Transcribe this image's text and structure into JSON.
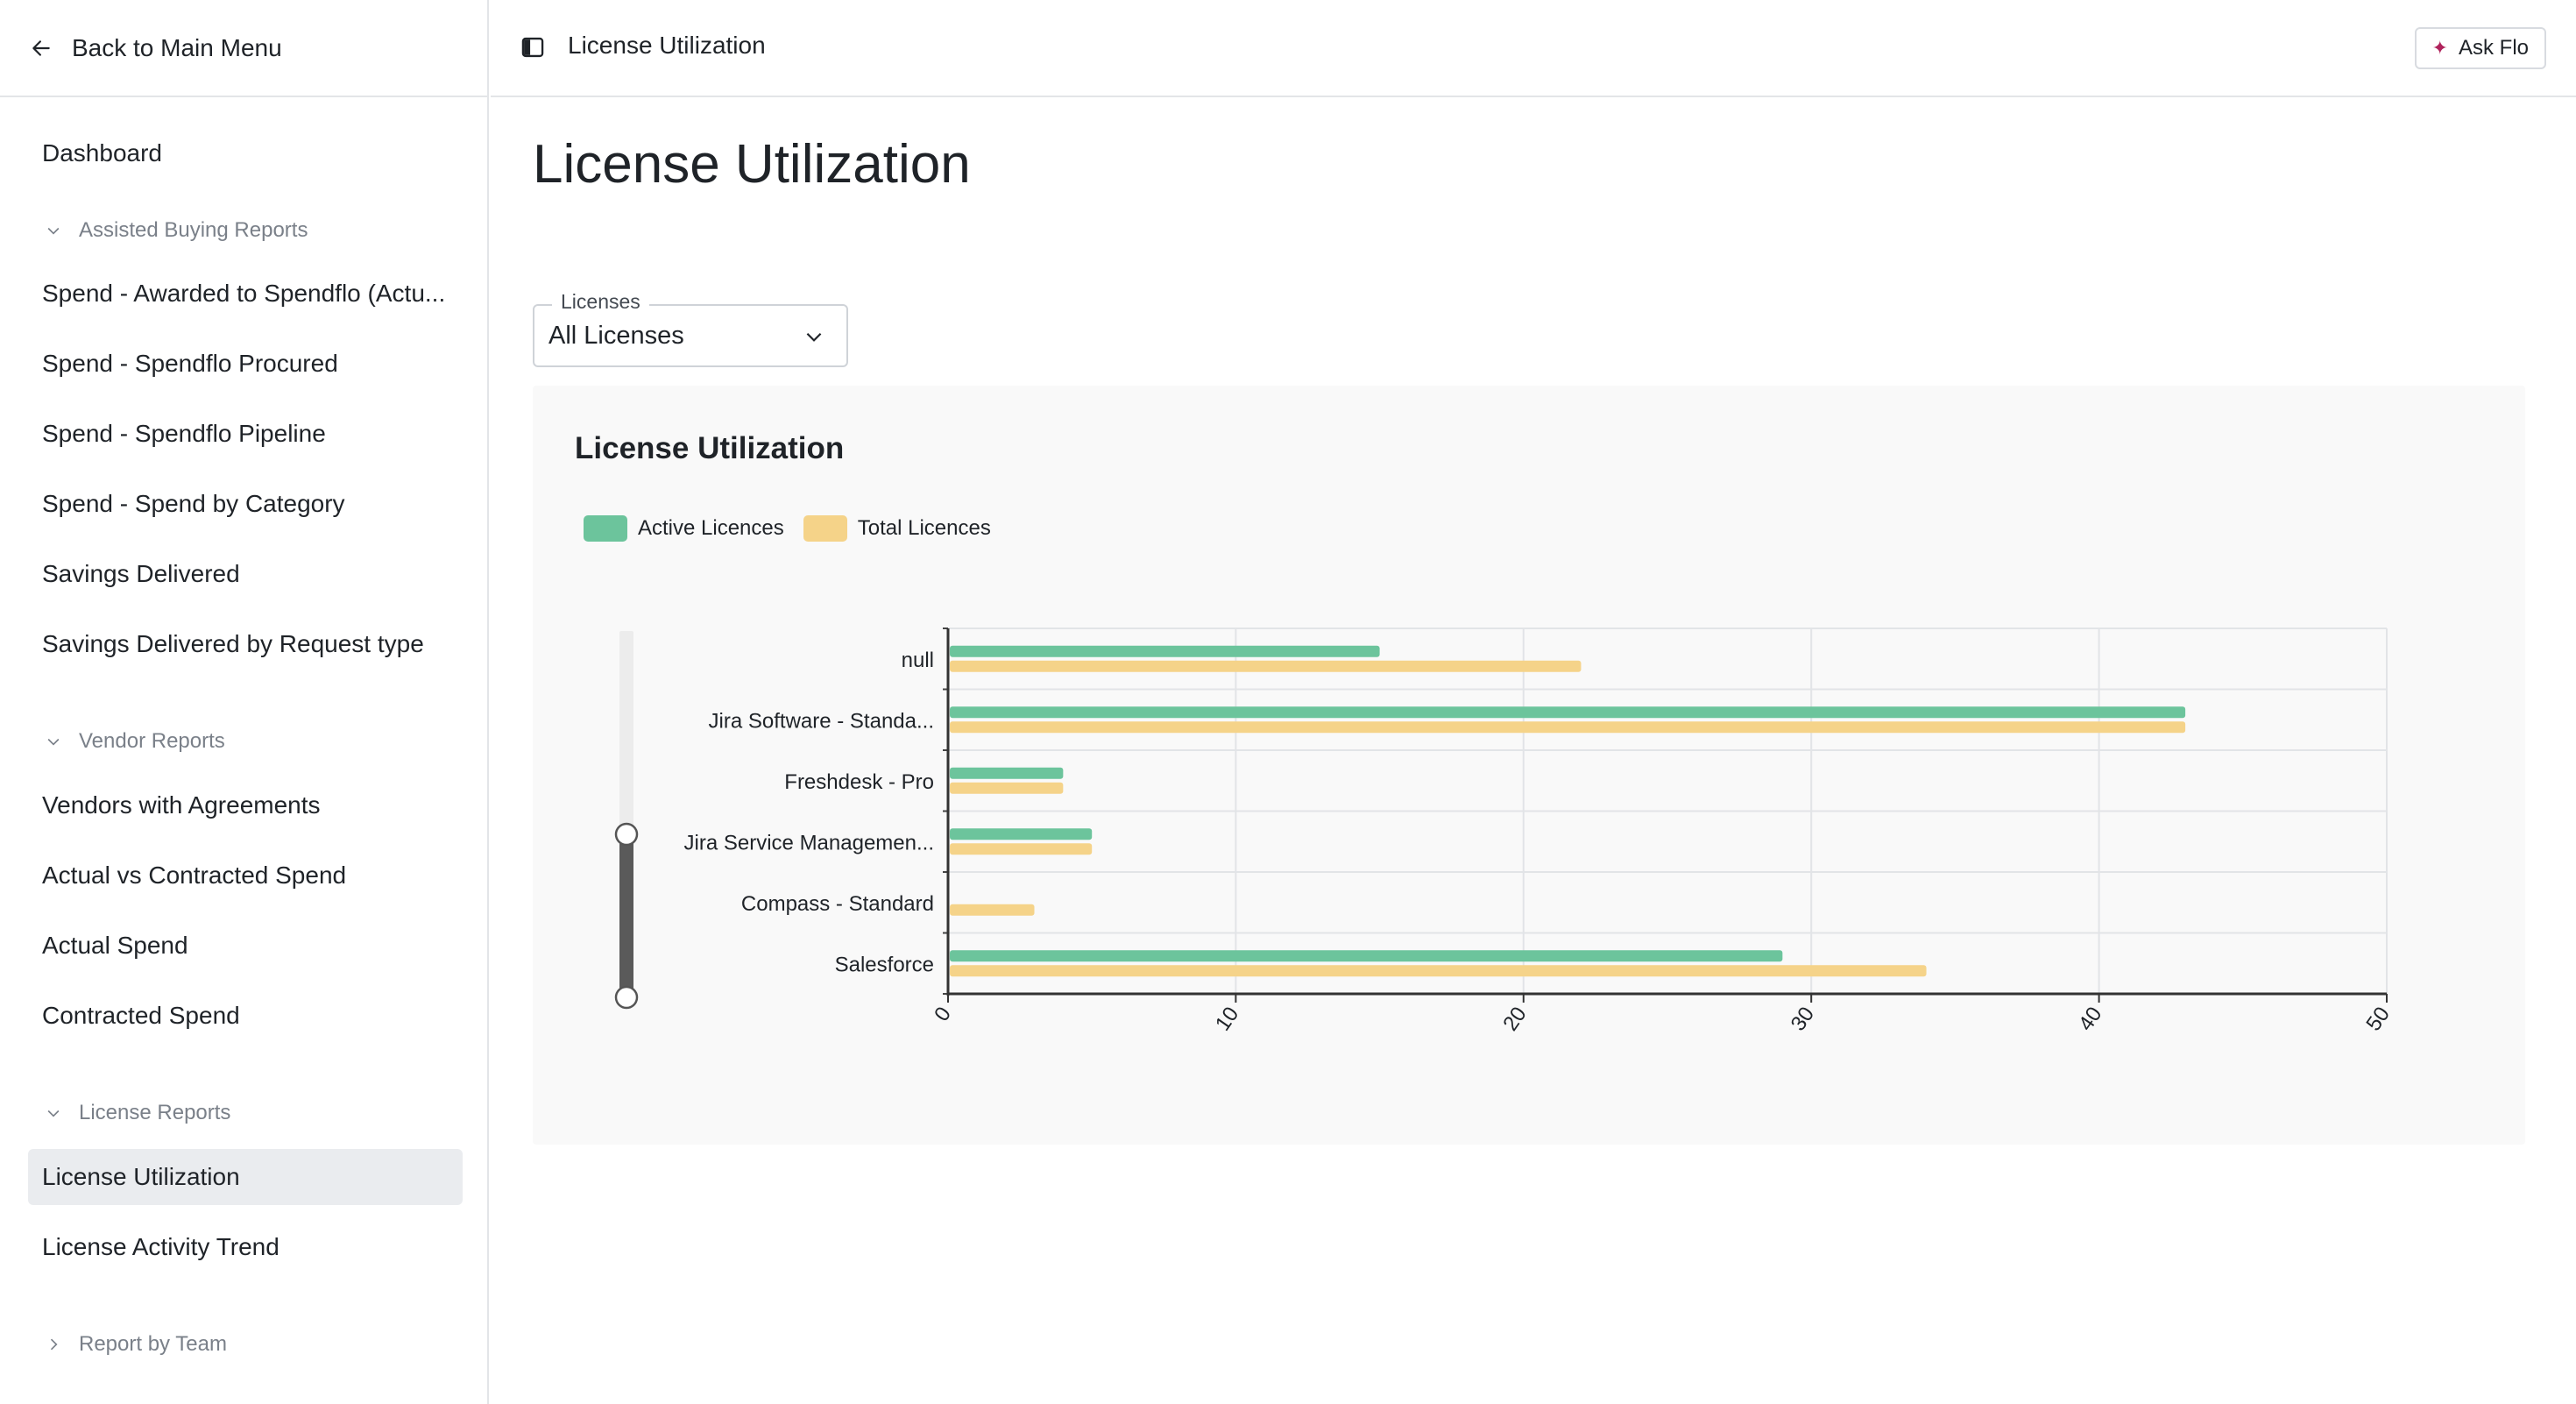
{
  "sidebar": {
    "back_label": "Back to Main Menu",
    "items": {
      "dashboard": "Dashboard",
      "spend_awarded": "Spend - Awarded to Spendflo (Actu...",
      "spend_procured": "Spend - Spendflo Procured",
      "spend_pipeline": "Spend - Spendflo Pipeline",
      "spend_category": "Spend - Spend by Category",
      "savings_delivered": "Savings Delivered",
      "savings_request_type": "Savings Delivered by Request type",
      "vendors_agreements": "Vendors with Agreements",
      "actual_vs_contracted": "Actual vs Contracted Spend",
      "actual_spend": "Actual Spend",
      "contracted_spend": "Contracted Spend",
      "license_utilization": "License Utilization",
      "license_activity": "License Activity Trend"
    },
    "groups": {
      "assisted": "Assisted Buying Reports",
      "vendor": "Vendor Reports",
      "license": "License Reports",
      "team": "Report by Team"
    }
  },
  "topbar": {
    "breadcrumb": "License Utilization",
    "ask_label": "Ask Flo"
  },
  "main": {
    "title": "License Utilization",
    "filter": {
      "label": "Licenses",
      "value": "All Licenses"
    }
  },
  "colors": {
    "active": "#6cc49c",
    "total": "#f5d389",
    "accent_spark": "#b0235c"
  },
  "chart_data": {
    "type": "bar",
    "orientation": "horizontal",
    "title": "License Utilization",
    "categories": [
      "null",
      "Jira Software - Standa...",
      "Freshdesk - Pro",
      "Jira Service Managemen...",
      "Compass - Standard",
      "Salesforce"
    ],
    "series": [
      {
        "name": "Active Licences",
        "values": [
          15,
          43,
          4,
          5,
          0,
          29
        ]
      },
      {
        "name": "Total Licences",
        "values": [
          22,
          43,
          4,
          5,
          3,
          34
        ]
      }
    ],
    "xlim": [
      0,
      50
    ],
    "xticks": [
      "0",
      "10",
      "20",
      "30",
      "40",
      "50"
    ],
    "grid": true,
    "legend": "top-left"
  }
}
